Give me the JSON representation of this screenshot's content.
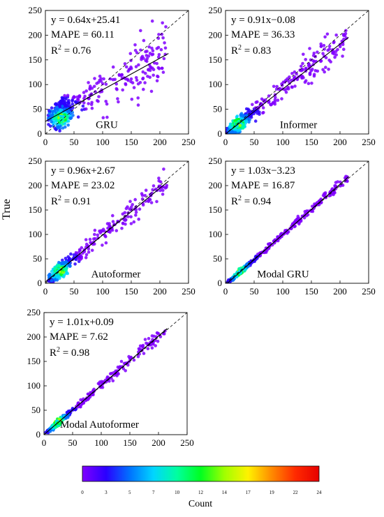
{
  "ylabel": "True",
  "colorbar": {
    "label": "Count",
    "ticks": [
      "0",
      "3",
      "5",
      "7",
      "10",
      "12",
      "14",
      "17",
      "19",
      "22",
      "24"
    ],
    "colors": [
      "#8000ff",
      "#2a00ff",
      "#0072ff",
      "#00d5ff",
      "#00ff9f",
      "#00ff20",
      "#a0ff00",
      "#fff200",
      "#ff8a00",
      "#ff2a00",
      "#e60000"
    ]
  },
  "chart_data": [
    {
      "type": "scatter",
      "model": "GRU",
      "equation": "y = 0.64x+25.41",
      "mape": "MAPE = 60.11",
      "r2_label": "R",
      "r2_sup": "2",
      "r2_value": " = 0.76",
      "slope": 0.64,
      "intercept": 25.41,
      "fit_x_range": [
        0,
        215
      ],
      "spread": 24,
      "dense_center": [
        28,
        32
      ],
      "xlim": [
        0,
        250
      ],
      "ylim": [
        0,
        250
      ],
      "xticks": [
        "0",
        "50",
        "100",
        "150",
        "200",
        "250"
      ],
      "yticks": [
        "0",
        "50",
        "100",
        "150",
        "200",
        "250"
      ],
      "diagonal": "dashed"
    },
    {
      "type": "scatter",
      "model": "Informer",
      "equation": "y = 0.91x−0.08",
      "mape": "MAPE = 36.33",
      "r2_label": "R",
      "r2_sup": "2",
      "r2_value": " = 0.83",
      "slope": 0.91,
      "intercept": -0.08,
      "fit_x_range": [
        0,
        215
      ],
      "spread": 14,
      "dense_center": [
        22,
        20
      ],
      "xlim": [
        0,
        250
      ],
      "ylim": [
        0,
        250
      ],
      "xticks": [
        "0",
        "50",
        "100",
        "150",
        "200",
        "250"
      ],
      "yticks": [
        "0",
        "50",
        "100",
        "150",
        "200",
        "250"
      ],
      "diagonal": "dashed"
    },
    {
      "type": "scatter",
      "model": "Autoformer",
      "equation": "y = 0.96x+2.67",
      "mape": "MAPE = 23.02",
      "r2_label": "R",
      "r2_sup": "2",
      "r2_value": " = 0.91",
      "slope": 0.96,
      "intercept": 2.67,
      "fit_x_range": [
        0,
        215
      ],
      "spread": 12,
      "dense_center": [
        25,
        25
      ],
      "xlim": [
        0,
        250
      ],
      "ylim": [
        0,
        250
      ],
      "xticks": [
        "0",
        "50",
        "100",
        "150",
        "200",
        "250"
      ],
      "yticks": [
        "0",
        "50",
        "100",
        "150",
        "200",
        "250"
      ],
      "diagonal": "dashed"
    },
    {
      "type": "scatter",
      "model": "Modal GRU",
      "equation": "y = 1.03x−3.23",
      "mape": "MAPE = 16.87",
      "r2_label": "R",
      "r2_sup": "2",
      "r2_value": " = 0.94",
      "slope": 1.03,
      "intercept": -3.23,
      "fit_x_range": [
        0,
        215
      ],
      "spread": 4,
      "dense_center": [
        25,
        24
      ],
      "xlim": [
        0,
        250
      ],
      "ylim": [
        0,
        250
      ],
      "xticks": [
        "0",
        "50",
        "100",
        "150",
        "200",
        "250"
      ],
      "yticks": [
        "0",
        "50",
        "100",
        "150",
        "200",
        "250"
      ],
      "diagonal": "dashed"
    },
    {
      "type": "scatter",
      "model": "Modal Autoformer",
      "equation": "y = 1.01x+0.09",
      "mape": "MAPE = 7.62",
      "r2_label": "R",
      "r2_sup": "2",
      "r2_value": " = 0.98",
      "slope": 1.01,
      "intercept": 0.09,
      "fit_x_range": [
        0,
        215
      ],
      "spread": 5,
      "dense_center": [
        25,
        25
      ],
      "xlim": [
        0,
        250
      ],
      "ylim": [
        0,
        250
      ],
      "xticks": [
        "0",
        "50",
        "100",
        "150",
        "200",
        "250"
      ],
      "yticks": [
        "0",
        "50",
        "100",
        "150",
        "200",
        "250"
      ],
      "diagonal": "dashed"
    }
  ]
}
